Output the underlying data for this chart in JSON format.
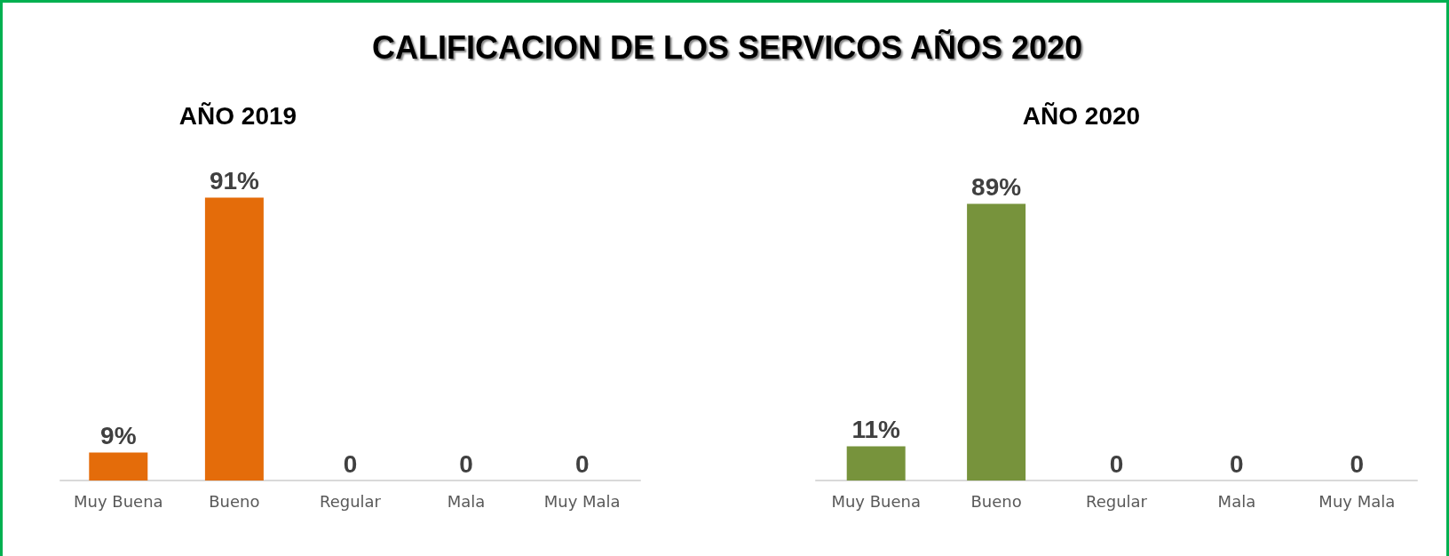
{
  "chart_data": [
    {
      "type": "bar",
      "title": "CALIFICACION DE LOS SERVICOS AÑOS 2020",
      "subtitle": "AÑO 2019",
      "categories": [
        "Muy Buena",
        "Bueno",
        "Regular",
        "Mala",
        "Muy Mala"
      ],
      "values": [
        9,
        91,
        0,
        0,
        0
      ],
      "value_labels": [
        "9%",
        "91%",
        "0",
        "0",
        "0"
      ],
      "color": "#e46c0a"
    },
    {
      "type": "bar",
      "title": "AÑO 2020",
      "categories": [
        "Muy Buena",
        "Bueno",
        "Regular",
        "Mala",
        "Muy Mala"
      ],
      "values": [
        11,
        89,
        0,
        0,
        0
      ],
      "value_labels": [
        "11%",
        "89%",
        "0",
        "0",
        "0"
      ],
      "color": "#77933c"
    }
  ]
}
